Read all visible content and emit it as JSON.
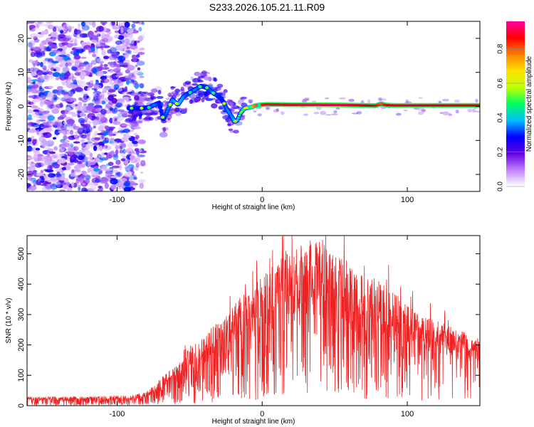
{
  "title": "S233.2026.105.21.11.R09",
  "chart_data": [
    {
      "type": "heatmap",
      "name": "spectrogram",
      "xlabel": "Height of straight line (km)",
      "ylabel": "Frequency (Hz)",
      "xlim": [
        -162,
        150
      ],
      "ylim": [
        -25,
        25
      ],
      "x_ticks": [
        -100,
        0,
        100
      ],
      "y_ticks": [
        -20,
        -10,
        0,
        10,
        20
      ],
      "colorbar": {
        "label": "Normalized spectral amplitude",
        "range": [
          0,
          0.96
        ],
        "ticks": [
          0,
          0.2,
          0.4,
          0.6,
          0.8
        ],
        "tick_labels": [
          "0.0",
          "0.2",
          "0.4",
          "0.6",
          "0.8"
        ],
        "colormap": [
          "#ffffff",
          "#c080ff",
          "#6000e0",
          "#0000ff",
          "#00c0ff",
          "#00ff60",
          "#c0ff00",
          "#ffe000",
          "#ff8000",
          "#ff0000",
          "#ff00a0"
        ]
      },
      "ridge": {
        "x": [
          -92,
          -85,
          -78,
          -74,
          -71,
          -68,
          -65,
          -62,
          -58,
          -54,
          -50,
          -46,
          -42,
          -38,
          -34,
          -30,
          -27,
          -24,
          -21,
          -19,
          -17,
          -15,
          -12,
          -8,
          -4,
          0,
          5,
          20,
          40,
          60,
          78,
          82,
          85,
          90,
          110,
          130,
          150
        ],
        "y": [
          -0.5,
          -0.6,
          -0.3,
          0.5,
          1,
          -4,
          -1,
          2,
          0.5,
          3,
          4,
          5,
          6,
          5.5,
          4,
          3,
          1.5,
          -1,
          -3,
          -4.5,
          -4,
          -2,
          -0.5,
          -0.3,
          0.3,
          0.5,
          0.6,
          0.5,
          0.5,
          0.4,
          0.2,
          0.8,
          0.4,
          0.3,
          0.3,
          0.3,
          0.3
        ],
        "amplitude": [
          0.25,
          0.28,
          0.3,
          0.35,
          0.3,
          0.3,
          0.35,
          0.35,
          0.4,
          0.35,
          0.3,
          0.35,
          0.3,
          0.3,
          0.35,
          0.3,
          0.3,
          0.35,
          0.35,
          0.4,
          0.4,
          0.5,
          0.6,
          0.7,
          0.8,
          0.85,
          0.9,
          0.9,
          0.92,
          0.9,
          0.85,
          0.8,
          0.85,
          0.9,
          0.9,
          0.88,
          0.85
        ]
      }
    },
    {
      "type": "line",
      "name": "snr",
      "xlabel": "Height of straight line (km)",
      "ylabel": "SNR (10 * v/v)",
      "xlim": [
        -162,
        150
      ],
      "ylim": [
        0,
        560
      ],
      "x_ticks": [
        -100,
        0,
        100
      ],
      "y_ticks": [
        0,
        100,
        200,
        300,
        400,
        500
      ],
      "color": "#ee2222",
      "envelope": {
        "x": [
          -162,
          -120,
          -90,
          -80,
          -70,
          -60,
          -50,
          -40,
          -30,
          -20,
          -10,
          0,
          10,
          20,
          30,
          40,
          50,
          60,
          70,
          80,
          90,
          100,
          110,
          120,
          130,
          140,
          150
        ],
        "upper": [
          30,
          30,
          35,
          45,
          90,
          130,
          190,
          230,
          280,
          330,
          380,
          430,
          480,
          520,
          550,
          540,
          510,
          470,
          430,
          420,
          380,
          330,
          300,
          280,
          260,
          240,
          220
        ],
        "lower": [
          8,
          8,
          10,
          15,
          25,
          40,
          60,
          80,
          100,
          130,
          150,
          180,
          220,
          250,
          280,
          260,
          230,
          200,
          180,
          170,
          160,
          150,
          160,
          170,
          180,
          180,
          175
        ]
      }
    }
  ]
}
